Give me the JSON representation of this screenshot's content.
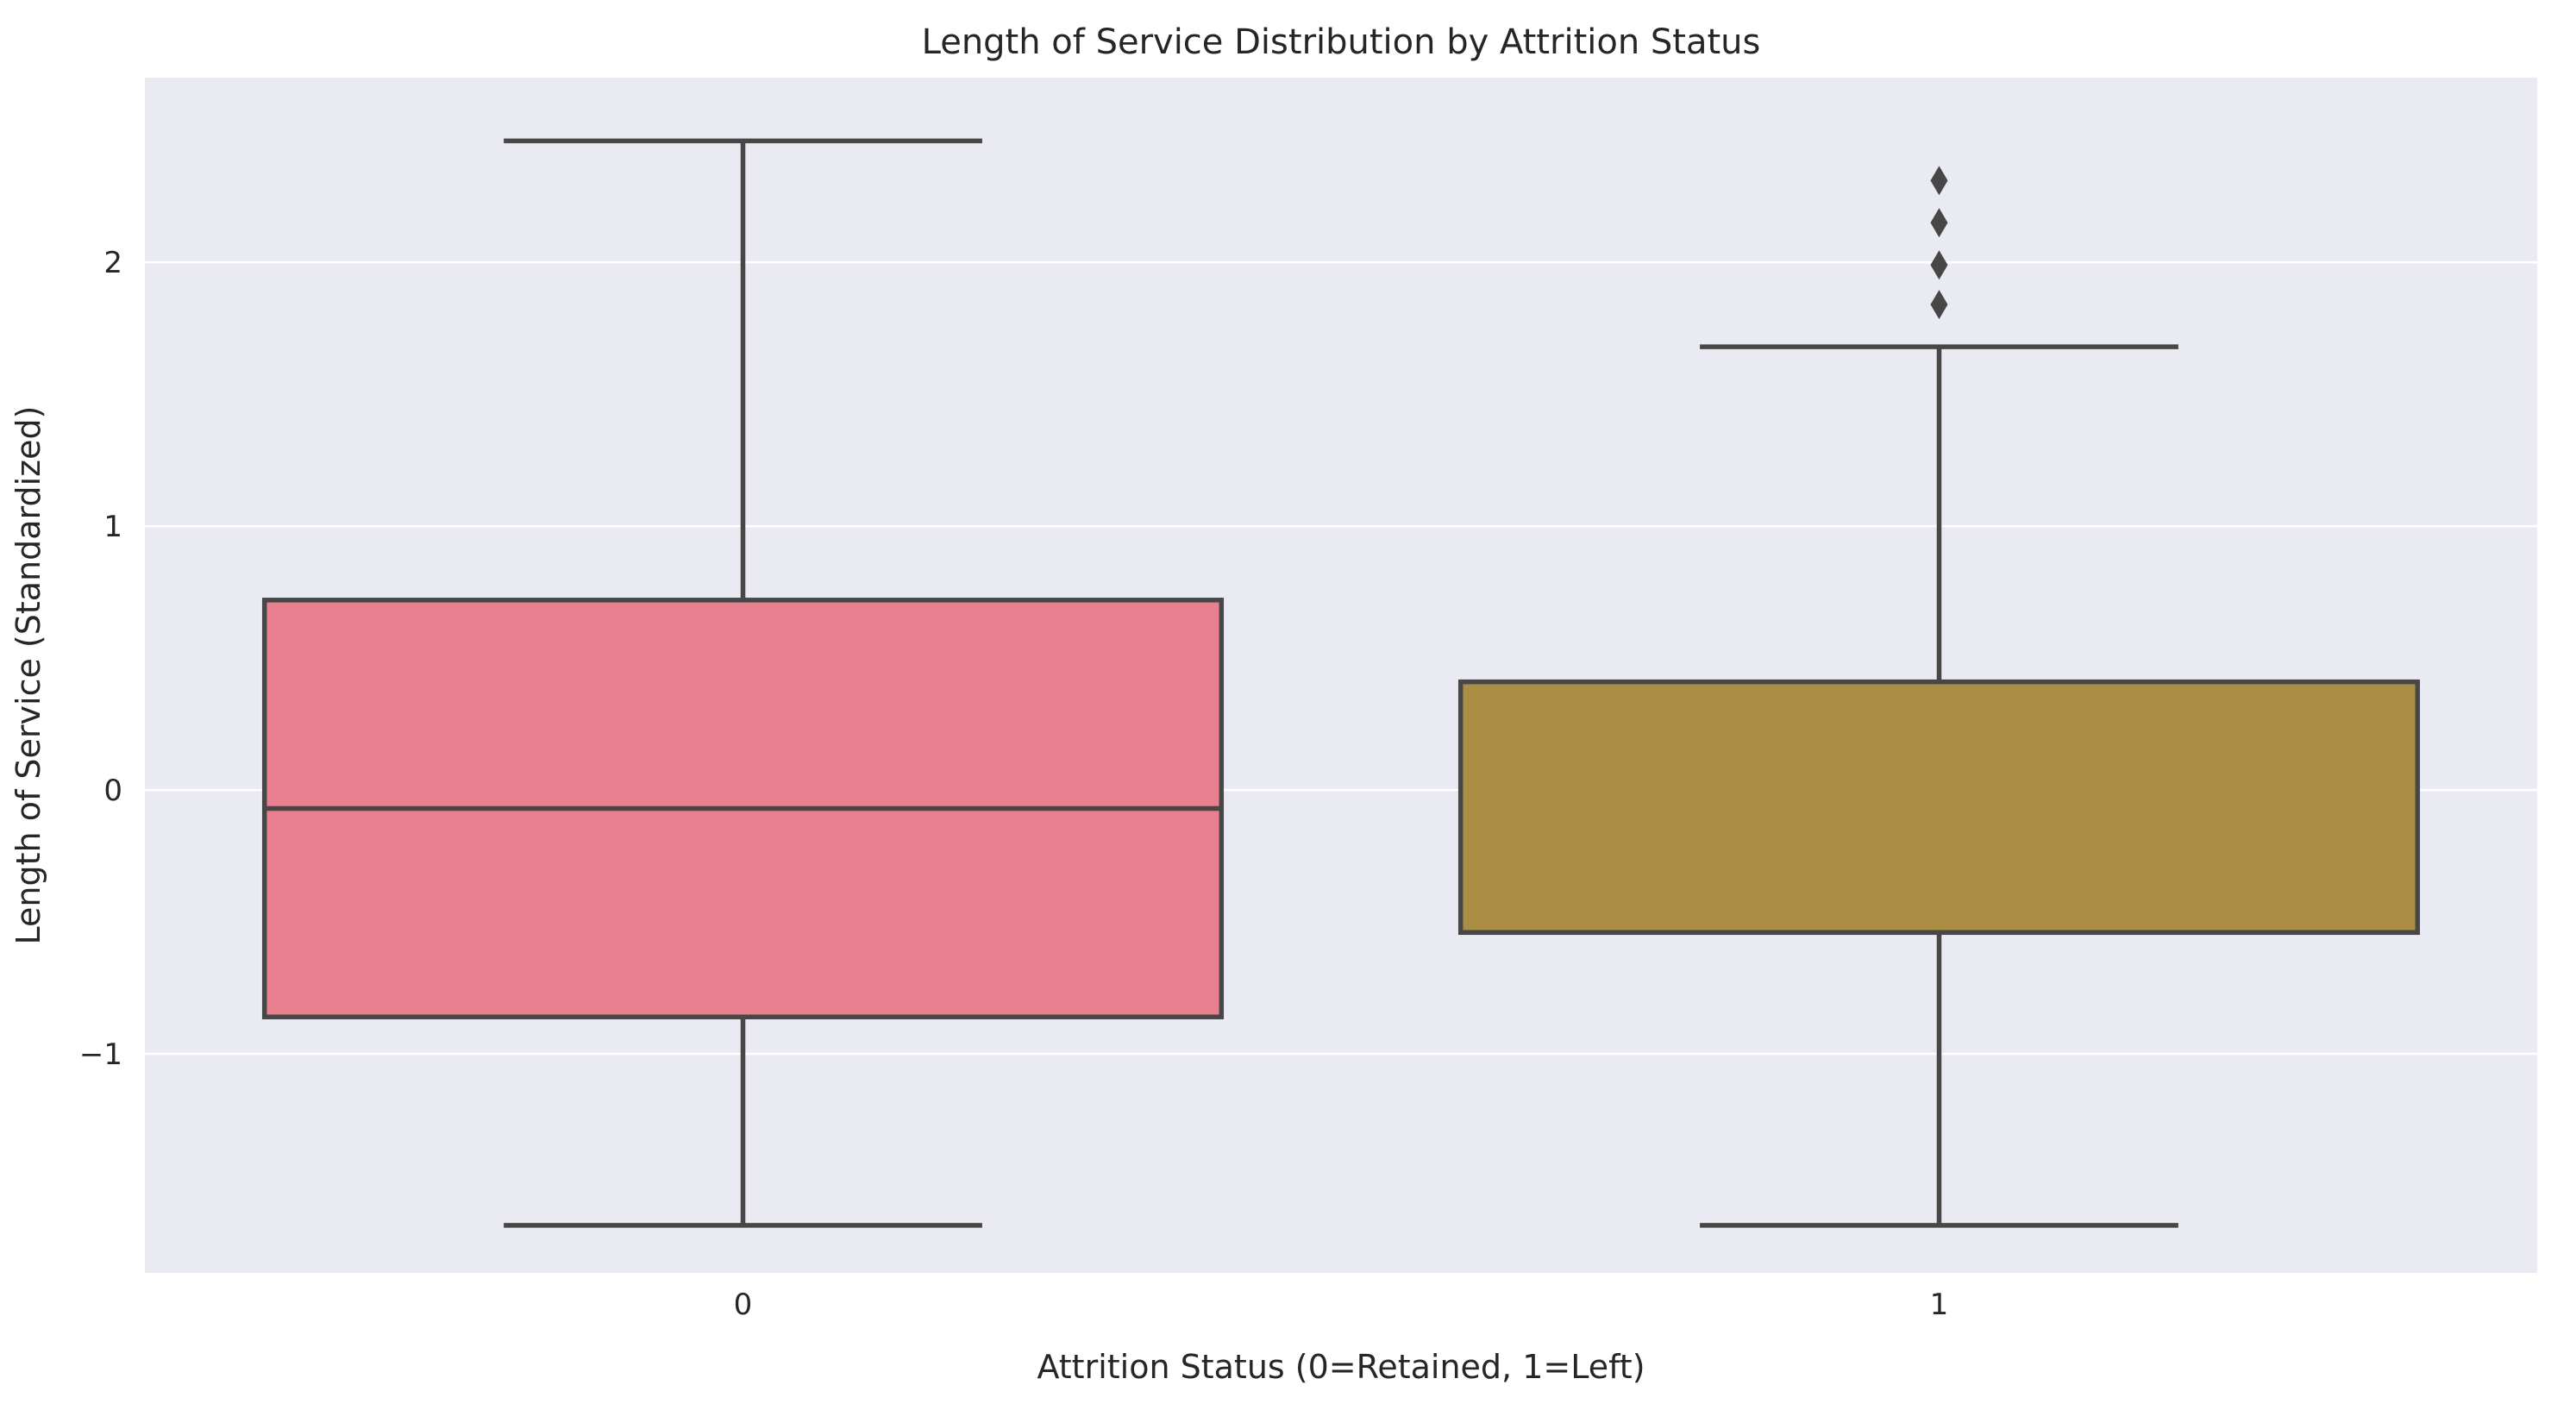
{
  "chart_data": {
    "type": "box",
    "title": "Length of Service Distribution by Attrition Status",
    "xlabel": "Attrition Status (0=Retained, 1=Left)",
    "ylabel": "Length of Service (Standardized)",
    "categories": [
      "0",
      "1"
    ],
    "ylim": [
      -1.83,
      2.7
    ],
    "yticks": [
      -1,
      0,
      1,
      2
    ],
    "ytick_labels": [
      "−1",
      "0",
      "1",
      "2"
    ],
    "grid": true,
    "boxes": [
      {
        "category": "0",
        "whisker_low": -1.65,
        "q1": -0.86,
        "median": -0.07,
        "q3": 0.72,
        "whisker_high": 2.46,
        "outliers": [],
        "color": "#e8808f"
      },
      {
        "category": "1",
        "whisker_low": -1.65,
        "q1": -0.54,
        "median": -0.54,
        "q3": 0.41,
        "whisker_high": 1.68,
        "outliers": [
          1.84,
          1.99,
          2.15,
          2.31
        ],
        "color": "#a98e43"
      }
    ]
  },
  "colors": {
    "plot_background": "#eaeaf2",
    "grid": "#ffffff",
    "box_edge": "#474747"
  }
}
